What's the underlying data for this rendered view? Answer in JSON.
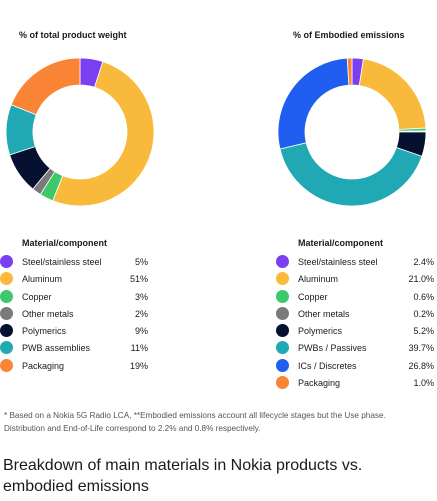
{
  "chart_data": [
    {
      "type": "pie",
      "title": "% of total product weight",
      "legend_header": "Material/component",
      "slices": [
        {
          "label": "Steel/stainless steel",
          "value": 5,
          "display": "5%",
          "color": "#7b3ff2"
        },
        {
          "label": "Aluminum",
          "value": 51,
          "display": "51%",
          "color": "#f9b93b"
        },
        {
          "label": "Copper",
          "value": 3,
          "display": "3%",
          "color": "#3dc86b"
        },
        {
          "label": "Other metals",
          "value": 2,
          "display": "2%",
          "color": "#7a7a7a"
        },
        {
          "label": "Polymerics",
          "value": 9,
          "display": "9%",
          "color": "#061132"
        },
        {
          "label": "PWB assemblies",
          "value": 11,
          "display": "11%",
          "color": "#20a8b5"
        },
        {
          "label": "Packaging",
          "value": 19,
          "display": "19%",
          "color": "#f98436"
        }
      ]
    },
    {
      "type": "pie",
      "title": "% of Embodied emissions",
      "legend_header": "Material/component",
      "slices": [
        {
          "label": "Steel/stainless steel",
          "value": 2.4,
          "display": "2.4%",
          "color": "#7b3ff2"
        },
        {
          "label": "Aluminum",
          "value": 21.0,
          "display": "21.0%",
          "color": "#f9b93b"
        },
        {
          "label": "Copper",
          "value": 0.6,
          "display": "0.6%",
          "color": "#3dc86b"
        },
        {
          "label": "Other metals",
          "value": 0.2,
          "display": "0.2%",
          "color": "#7a7a7a"
        },
        {
          "label": "Polymerics",
          "value": 5.2,
          "display": "5.2%",
          "color": "#061132"
        },
        {
          "label": "PWBs / Passives",
          "value": 39.7,
          "display": "39.7%",
          "color": "#20a8b5"
        },
        {
          "label": "ICs / Discretes",
          "value": 26.8,
          "display": "26.8%",
          "color": "#1f5ef0"
        },
        {
          "label": "Packaging",
          "value": 1.0,
          "display": "1.0%",
          "color": "#f98436"
        }
      ]
    }
  ],
  "footnote": "* Based on a Nokia 5G Radio LCA, **Embodied emissions account all lifecycle stages but the Use phase. Distribution and End-of-Life correspond to 2.2% and 0.8% respectively.",
  "caption": "Breakdown of main materials in Nokia products vs. embodied emissions"
}
